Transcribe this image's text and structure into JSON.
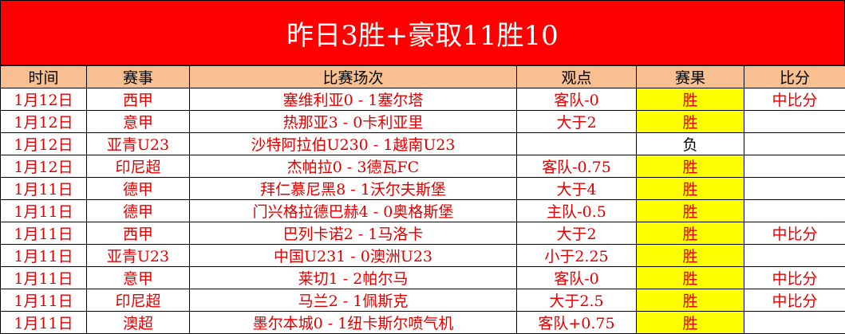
{
  "title": "昨日3胜+豪取11胜10",
  "headers": [
    "时间",
    "赛事",
    "比赛场次",
    "观点",
    "赛果",
    "比分"
  ],
  "colors": {
    "title_bg": "#ff0000",
    "header_bg": "#f8c090",
    "win_bg": "#ffff00",
    "text": "#e00000"
  },
  "rows": [
    {
      "date": "1月12日",
      "league": "西甲",
      "match": "塞维利亚0 - 1塞尔塔",
      "pick": "客队-0",
      "result": "胜",
      "score": "中比分"
    },
    {
      "date": "1月12日",
      "league": "意甲",
      "match": "热那亚3 - 0卡利亚里",
      "pick": "大于2",
      "result": "胜",
      "score": ""
    },
    {
      "date": "1月12日",
      "league": "亚青U23",
      "match": "沙特阿拉伯U230 - 1越南U23",
      "pick": "",
      "result": "负",
      "score": ""
    },
    {
      "date": "1月12日",
      "league": "印尼超",
      "match": "杰帕拉0 - 3德瓦FC",
      "pick": "客队-0.75",
      "result": "胜",
      "score": ""
    },
    {
      "date": "1月11日",
      "league": "德甲",
      "match": "拜仁慕尼黑8 - 1沃尔夫斯堡",
      "pick": "大于4",
      "result": "胜",
      "score": ""
    },
    {
      "date": "1月11日",
      "league": "德甲",
      "match": "门兴格拉德巴赫4 - 0奥格斯堡",
      "pick": "主队-0.5",
      "result": "胜",
      "score": ""
    },
    {
      "date": "1月11日",
      "league": "西甲",
      "match": "巴列卡诺2 - 1马洛卡",
      "pick": "大于2",
      "result": "胜",
      "score": "中比分"
    },
    {
      "date": "1月11日",
      "league": "亚青U23",
      "match": "中国U231 - 0澳洲U23",
      "pick": "小于2.25",
      "result": "胜",
      "score": ""
    },
    {
      "date": "1月11日",
      "league": "意甲",
      "match": "莱切1 - 2帕尔马",
      "pick": "客队-0",
      "result": "胜",
      "score": "中比分"
    },
    {
      "date": "1月11日",
      "league": "印尼超",
      "match": "马兰2 - 1佩斯克",
      "pick": "大于2.5",
      "result": "胜",
      "score": "中比分"
    },
    {
      "date": "1月11日",
      "league": "澳超",
      "match": "墨尔本城0 - 1纽卡斯尔喷气机",
      "pick": "客队+0.75",
      "result": "胜",
      "score": ""
    }
  ]
}
